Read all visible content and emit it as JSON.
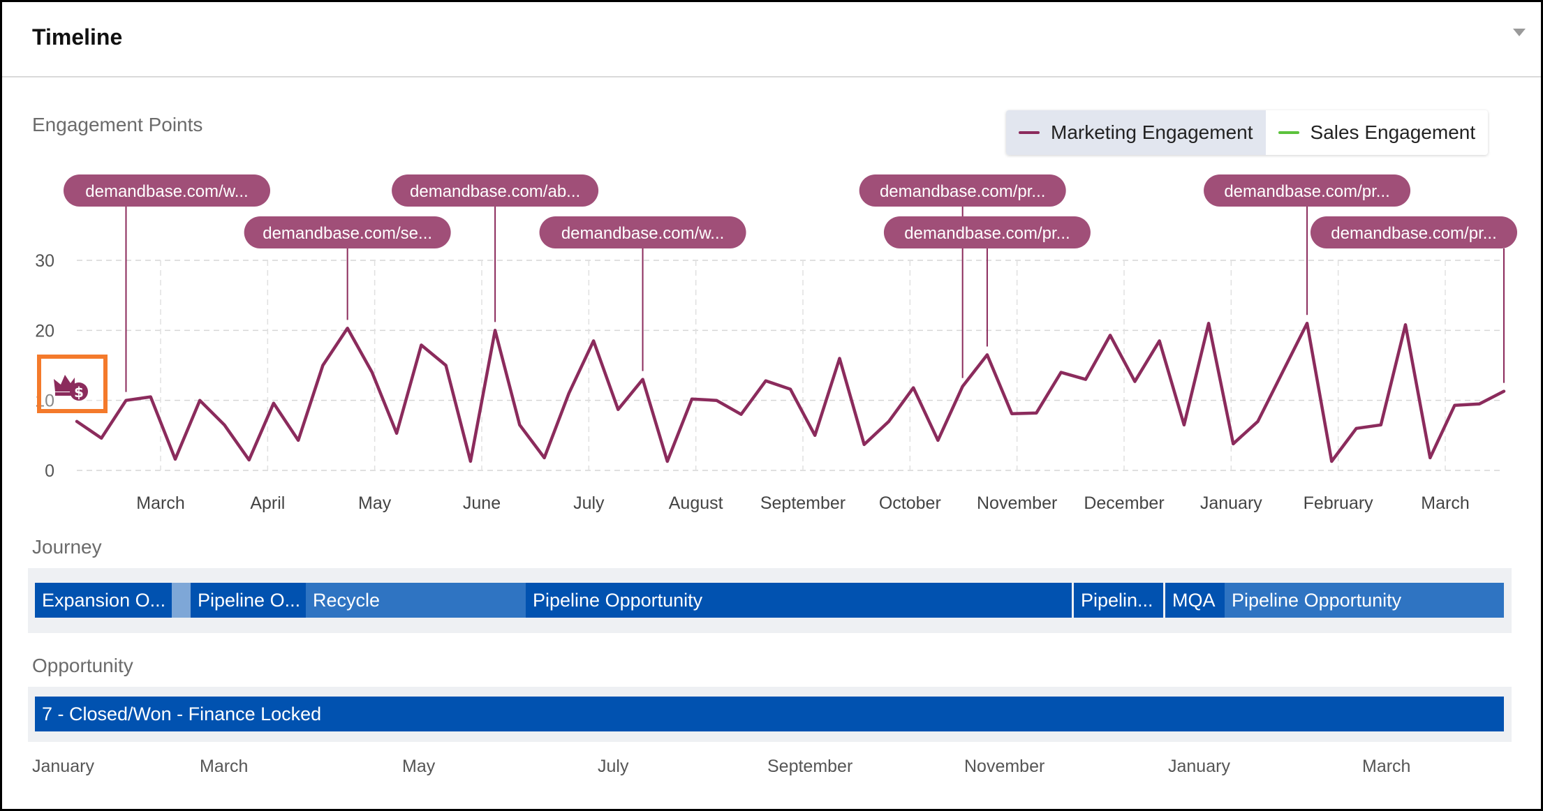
{
  "header": {
    "title": "Timeline"
  },
  "engagement": {
    "label": "Engagement Points",
    "legend": [
      {
        "label": "Marketing Engagement",
        "color": "#8b2b5c"
      },
      {
        "label": "Sales Engagement",
        "color": "#5cc23c"
      }
    ]
  },
  "chart_data": {
    "type": "line",
    "title": "",
    "ylabel": "",
    "ylim": [
      0,
      30
    ],
    "yticks": [
      "0",
      "10",
      "20",
      "30"
    ],
    "grid": true,
    "legend_position": "top-right",
    "x_tick_labels": [
      "March",
      "April",
      "May",
      "June",
      "July",
      "August",
      "September",
      "October",
      "November",
      "December",
      "January",
      "February",
      "March"
    ],
    "series": [
      {
        "name": "Marketing Engagement",
        "color": "#8b2b5c",
        "values": [
          7,
          4.6,
          10,
          10.5,
          1.6,
          10,
          6.5,
          1.5,
          9.6,
          4.3,
          15,
          20.3,
          14,
          5.3,
          17.9,
          15,
          1.3,
          20,
          6.5,
          1.8,
          11,
          18.5,
          8.7,
          13,
          1.3,
          10.2,
          10,
          8,
          12.8,
          11.6,
          5,
          16,
          3.7,
          7,
          11.8,
          4.3,
          12,
          16.5,
          8.1,
          8.2,
          14,
          13,
          19.3,
          12.7,
          18.5,
          6.5,
          21,
          3.8,
          7,
          14,
          21,
          1.3,
          6,
          6.5,
          20.8,
          1.8,
          9.3,
          9.5,
          11.3
        ]
      },
      {
        "name": "Sales Engagement",
        "color": "#5cc23c",
        "values": []
      }
    ],
    "annotations": [
      {
        "label": "demandbase.com/w...",
        "point": 2,
        "row": 0
      },
      {
        "label": "demandbase.com/se...",
        "point": 11,
        "row": 1
      },
      {
        "label": "demandbase.com/ab...",
        "point": 17,
        "row": 0
      },
      {
        "label": "demandbase.com/w...",
        "point": 23,
        "row": 1
      },
      {
        "label": "demandbase.com/pr...",
        "point": 36,
        "row": 0
      },
      {
        "label": "demandbase.com/pr...",
        "point": 37,
        "row": 1
      },
      {
        "label": "demandbase.com/pr...",
        "point": 50,
        "row": 0
      },
      {
        "label": "demandbase.com/pr...",
        "point": 58,
        "row": 1
      }
    ]
  },
  "journey": {
    "label": "Journey",
    "stages": [
      {
        "label": "Expansion O...",
        "shade": "dark"
      },
      {
        "label": "Pipeline O...",
        "shade": "dark"
      },
      {
        "label": "Recycle",
        "shade": "light"
      },
      {
        "label": "Pipeline Opportunity",
        "shade": "dark"
      },
      {
        "label": "Pipelin...",
        "shade": "dark"
      },
      {
        "label": "MQA",
        "shade": "dark"
      },
      {
        "label": "Pipeline Opportunity",
        "shade": "light"
      }
    ]
  },
  "opportunity": {
    "label": "Opportunity",
    "stages": [
      {
        "label": "7 - Closed/Won - Finance Locked"
      }
    ]
  },
  "bottom_axis": [
    "January",
    "March",
    "May",
    "July",
    "September",
    "November",
    "January",
    "March"
  ],
  "icons": {
    "highlight_icon": "crown-dollar-icon",
    "collapse_icon": "chevron-down-icon"
  }
}
